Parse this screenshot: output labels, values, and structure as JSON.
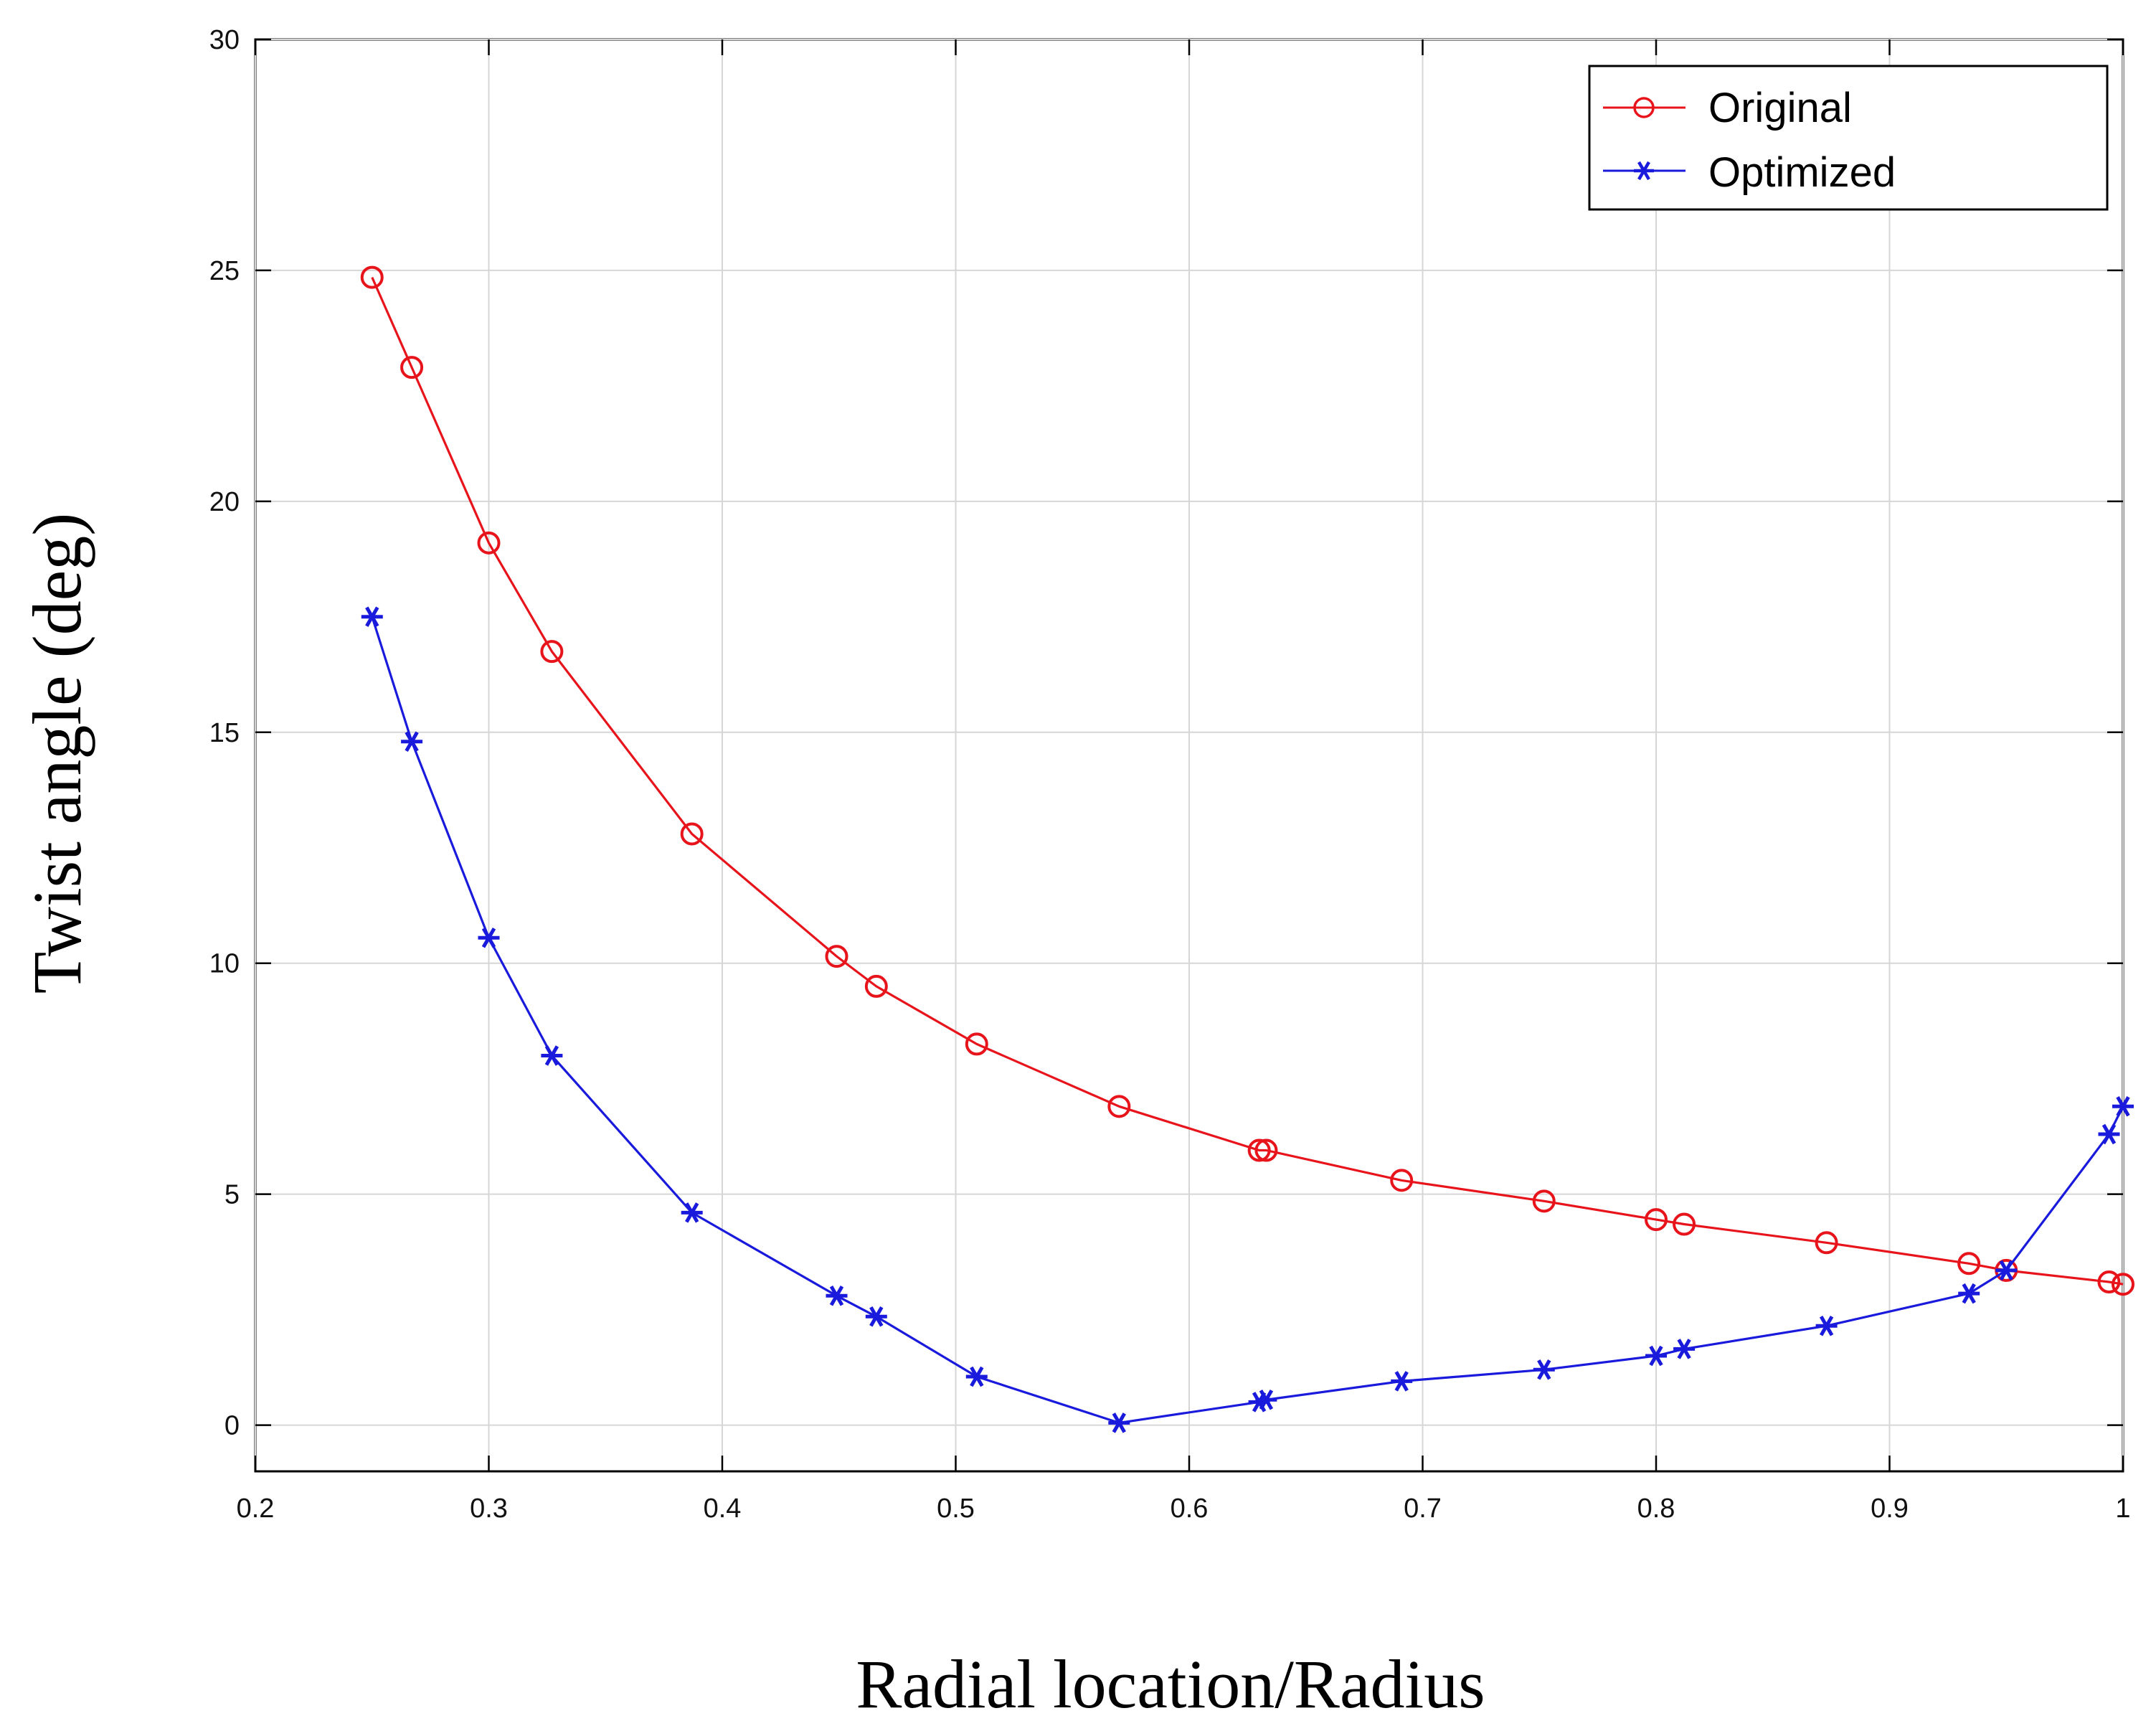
{
  "chart_data": {
    "type": "line",
    "title": "",
    "xlabel": "Radial location/Radius",
    "ylabel": "Twist angle (deg)",
    "xlim": [
      0.2,
      1.0
    ],
    "ylim": [
      -1,
      30
    ],
    "xticks": [
      0.2,
      0.3,
      0.4,
      0.5,
      0.6,
      0.7,
      0.8,
      0.9,
      1.0
    ],
    "xtick_labels": [
      "0.2",
      "0.3",
      "0.4",
      "0.5",
      "0.6",
      "0.7",
      "0.8",
      "0.9",
      "1"
    ],
    "yticks": [
      0,
      5,
      10,
      15,
      20,
      25,
      30
    ],
    "ytick_labels": [
      "0",
      "5",
      "10",
      "15",
      "20",
      "25",
      "30"
    ],
    "grid": true,
    "legend_position": "top-right",
    "series": [
      {
        "name": "Original",
        "color": "#e8141c",
        "marker": "circle",
        "x": [
          0.25,
          0.267,
          0.3,
          0.327,
          0.387,
          0.449,
          0.466,
          0.509,
          0.57,
          0.63,
          0.633,
          0.691,
          0.752,
          0.8,
          0.812,
          0.873,
          0.934,
          0.95,
          0.994,
          1.0
        ],
        "y": [
          24.85,
          22.9,
          19.1,
          16.75,
          12.8,
          10.15,
          9.5,
          8.25,
          6.9,
          5.95,
          5.95,
          5.3,
          4.85,
          4.45,
          4.35,
          3.95,
          3.5,
          3.35,
          3.1,
          3.05
        ]
      },
      {
        "name": "Optimized",
        "color": "#1a1adc",
        "marker": "asterisk",
        "x": [
          0.25,
          0.267,
          0.3,
          0.327,
          0.387,
          0.449,
          0.466,
          0.509,
          0.57,
          0.63,
          0.633,
          0.691,
          0.752,
          0.8,
          0.812,
          0.873,
          0.934,
          0.95,
          0.994,
          1.0
        ],
        "y": [
          17.5,
          14.8,
          10.55,
          8.0,
          4.6,
          2.8,
          2.35,
          1.05,
          0.05,
          0.5,
          0.55,
          0.95,
          1.2,
          1.5,
          1.65,
          2.15,
          2.85,
          3.35,
          6.3,
          6.9
        ]
      }
    ]
  }
}
